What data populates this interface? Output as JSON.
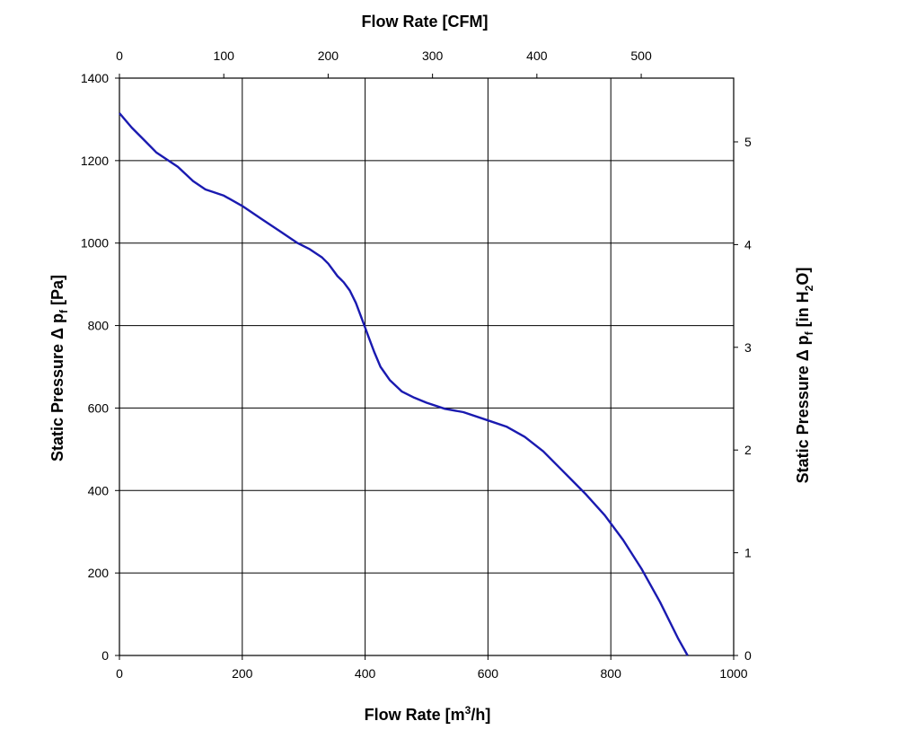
{
  "chart_data": {
    "type": "line",
    "title": "",
    "colors": {
      "series": "#1a1ab0",
      "grid": "#000000",
      "background": "#ffffff"
    },
    "x_bottom": {
      "label_main": "Flow Rate [m",
      "label_sup": "3",
      "label_end": "/h]",
      "range": [
        0,
        1000
      ],
      "ticks": [
        "0",
        "200",
        "400",
        "600",
        "800",
        "1000"
      ]
    },
    "x_top": {
      "label": "Flow Rate [CFM]",
      "range_in_m3h": [
        0,
        1000
      ],
      "ticks": [
        "0",
        "100",
        "200",
        "300",
        "400",
        "500"
      ],
      "tick_values": [
        0,
        100,
        200,
        300,
        400,
        500
      ]
    },
    "y_left": {
      "label_main": "Static Pressure Δ p",
      "label_sub": "f",
      "label_end": " [Pa]",
      "range": [
        0,
        1400
      ],
      "ticks": [
        "0",
        "200",
        "400",
        "600",
        "800",
        "1000",
        "1200",
        "1400"
      ]
    },
    "y_right": {
      "label_main": "Static Pressure Δ p",
      "label_sub": "f",
      "label_mid": " [in H",
      "label_sub2": "2",
      "label_end": "O]",
      "ticks": [
        "0",
        "1",
        "2",
        "3",
        "4",
        "5"
      ],
      "tick_values": [
        0,
        1,
        2,
        3,
        4,
        5
      ]
    },
    "grid": true,
    "series": [
      {
        "x": [
          0,
          20,
          40,
          60,
          75,
          95,
          120,
          140,
          150,
          170,
          200,
          230,
          260,
          290,
          310,
          330,
          340,
          350,
          355,
          365,
          375,
          385,
          395,
          405,
          415,
          425,
          440,
          460,
          480,
          500,
          530,
          560,
          600,
          630,
          660,
          690,
          720,
          740,
          760,
          790,
          820,
          850,
          880,
          910,
          925
        ],
        "y": [
          1315,
          1280,
          1250,
          1220,
          1205,
          1185,
          1150,
          1130,
          1125,
          1115,
          1090,
          1060,
          1030,
          1000,
          985,
          965,
          950,
          930,
          920,
          905,
          885,
          855,
          815,
          775,
          735,
          700,
          668,
          640,
          625,
          613,
          598,
          590,
          570,
          555,
          530,
          495,
          450,
          420,
          390,
          340,
          280,
          210,
          130,
          40,
          0
        ]
      }
    ]
  }
}
